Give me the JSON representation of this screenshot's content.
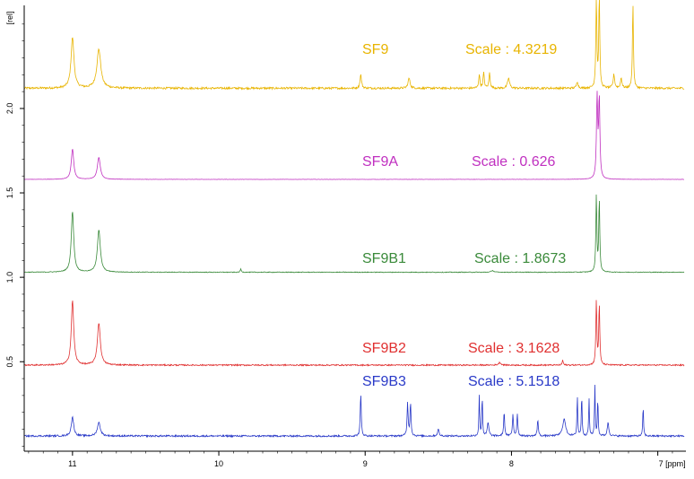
{
  "chart_data": {
    "type": "line",
    "x_label": "[ppm]",
    "y_label": "[rel]",
    "x_range": [
      11.33,
      6.82
    ],
    "y_range": [
      -0.03,
      2.6
    ],
    "x_ticks": [
      11,
      10,
      9,
      8,
      7
    ],
    "x_tick_labels": [
      "11",
      "10",
      "9",
      "8",
      "7 [ppm]"
    ],
    "y_ticks": [
      0.5,
      1.0,
      1.5,
      2.0
    ],
    "y_tick_labels": [
      "0.5",
      "1.0",
      "1.5",
      "2.0"
    ],
    "grid": false,
    "series": [
      {
        "name": "SF9",
        "scale_label": "Scale : 4.3219",
        "color": "#e8b400",
        "baseline": 2.12,
        "noise": 0.006,
        "peaks": [
          [
            11.0,
            0.3,
            0.012
          ],
          [
            10.82,
            0.23,
            0.016
          ],
          [
            9.03,
            0.08,
            0.006
          ],
          [
            8.7,
            0.06,
            0.008
          ],
          [
            8.22,
            0.08,
            0.005
          ],
          [
            8.19,
            0.09,
            0.005
          ],
          [
            8.15,
            0.09,
            0.005
          ],
          [
            8.02,
            0.06,
            0.008
          ],
          [
            7.42,
            0.55,
            0.004
          ],
          [
            7.4,
            0.55,
            0.004
          ],
          [
            7.17,
            0.5,
            0.004
          ],
          [
            7.3,
            0.08,
            0.006
          ],
          [
            7.25,
            0.06,
            0.006
          ],
          [
            7.55,
            0.04,
            0.006
          ]
        ]
      },
      {
        "name": "SF9A",
        "scale_label": "Scale : 0.626",
        "color": "#c030c0",
        "baseline": 1.58,
        "noise": 0.0008,
        "peaks": [
          [
            11.0,
            0.18,
            0.01
          ],
          [
            10.82,
            0.13,
            0.012
          ],
          [
            7.415,
            0.48,
            0.005
          ],
          [
            7.4,
            0.47,
            0.005
          ]
        ]
      },
      {
        "name": "SF9B1",
        "scale_label": "Scale : 1.8673",
        "color": "#3a8a3a",
        "baseline": 1.03,
        "noise": 0.002,
        "peaks": [
          [
            11.0,
            0.36,
            0.01
          ],
          [
            10.82,
            0.25,
            0.012
          ],
          [
            9.85,
            0.02,
            0.004
          ],
          [
            7.42,
            0.45,
            0.004
          ],
          [
            7.4,
            0.43,
            0.004
          ],
          [
            8.13,
            0.01,
            0.01
          ]
        ]
      },
      {
        "name": "SF9B2",
        "scale_label": "Scale : 3.1628",
        "color": "#e03030",
        "baseline": 0.48,
        "noise": 0.004,
        "peaks": [
          [
            11.0,
            0.38,
            0.01
          ],
          [
            10.82,
            0.25,
            0.012
          ],
          [
            7.42,
            0.38,
            0.004
          ],
          [
            7.4,
            0.36,
            0.004
          ],
          [
            7.65,
            0.03,
            0.004
          ],
          [
            8.08,
            0.015,
            0.01
          ]
        ]
      },
      {
        "name": "SF9B3",
        "scale_label": "Scale : 5.1518",
        "color": "#2a3ac8",
        "baseline": 0.06,
        "noise": 0.005,
        "peaks": [
          [
            11.0,
            0.11,
            0.01
          ],
          [
            10.82,
            0.08,
            0.012
          ],
          [
            9.03,
            0.25,
            0.004
          ],
          [
            8.71,
            0.2,
            0.004
          ],
          [
            8.69,
            0.2,
            0.004
          ],
          [
            8.5,
            0.04,
            0.006
          ],
          [
            8.22,
            0.24,
            0.003
          ],
          [
            8.2,
            0.24,
            0.003
          ],
          [
            8.16,
            0.08,
            0.006
          ],
          [
            8.05,
            0.14,
            0.004
          ],
          [
            7.99,
            0.13,
            0.004
          ],
          [
            7.96,
            0.13,
            0.004
          ],
          [
            7.82,
            0.1,
            0.004
          ],
          [
            7.64,
            0.1,
            0.012
          ],
          [
            7.55,
            0.24,
            0.003
          ],
          [
            7.52,
            0.25,
            0.003
          ],
          [
            7.47,
            0.22,
            0.003
          ],
          [
            7.43,
            0.3,
            0.003
          ],
          [
            7.41,
            0.22,
            0.003
          ],
          [
            7.34,
            0.08,
            0.006
          ],
          [
            7.1,
            0.18,
            0.003
          ]
        ]
      }
    ]
  }
}
